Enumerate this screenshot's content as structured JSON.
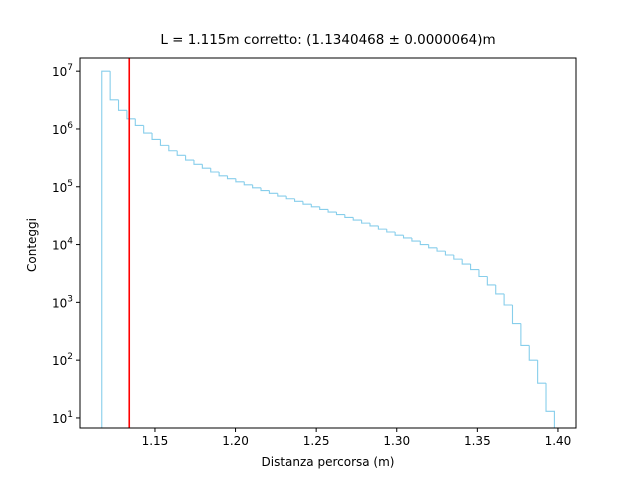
{
  "chart_data": {
    "type": "histogram",
    "title": "L = 1.115m corretto: (1.1340468 ± 0.0000064)m",
    "x_label": "Distanza percorsa (m)",
    "y_label": "Conteggi",
    "histtype": "step",
    "color": "#87ceeb",
    "y_scale": "log",
    "bins": [
      1.117,
      1.1222,
      1.1274,
      1.1326,
      1.1378,
      1.143,
      1.1482,
      1.1534,
      1.1586,
      1.1638,
      1.169,
      1.1742,
      1.1794,
      1.1846,
      1.1898,
      1.195,
      1.2002,
      1.2054,
      1.2106,
      1.2158,
      1.221,
      1.2262,
      1.2314,
      1.2366,
      1.2418,
      1.247,
      1.2522,
      1.2574,
      1.2626,
      1.2678,
      1.273,
      1.2782,
      1.2834,
      1.2886,
      1.2938,
      1.299,
      1.3042,
      1.3094,
      1.3146,
      1.3198,
      1.325,
      1.3302,
      1.3354,
      1.3406,
      1.3458,
      1.351,
      1.3562,
      1.3614,
      1.3666,
      1.3718,
      1.377,
      1.3822,
      1.3874,
      1.3926,
      1.3978
    ],
    "values": [
      10000000,
      3200000,
      2100000,
      1500000,
      1150000,
      850000,
      660000,
      520000,
      420000,
      350000,
      290000,
      245000,
      210000,
      180000,
      155000,
      138000,
      122000,
      108000,
      96000,
      86000,
      77000,
      69000,
      62000,
      56000,
      50000,
      45000,
      40500,
      36500,
      33000,
      29500,
      26500,
      23500,
      21000,
      18500,
      16500,
      14500,
      13000,
      11500,
      10000,
      8800,
      7700,
      6600,
      5600,
      4600,
      3700,
      2800,
      2000,
      1400,
      900,
      430,
      180,
      100,
      40,
      13
    ],
    "vline": {
      "x": 1.1340468,
      "color": "#ff0000"
    },
    "xlim": [
      1.1035,
      1.4112
    ],
    "ylim": [
      6.7,
      16900000
    ],
    "xticks": [
      1.15,
      {
        "value": 1.2,
        "label": "1.20"
      },
      1.25,
      {
        "value": 1.3,
        "label": "1.30"
      },
      1.35,
      {
        "value": 1.4,
        "label": "1.40"
      }
    ],
    "yticks": [
      {
        "value": 10,
        "label": "10",
        "exp": "1"
      },
      {
        "value": 100,
        "label": "10",
        "exp": "2"
      },
      {
        "value": 1000,
        "label": "10",
        "exp": "3"
      },
      {
        "value": 10000,
        "label": "10",
        "exp": "4"
      },
      {
        "value": 100000,
        "label": "10",
        "exp": "5"
      },
      {
        "value": 1000000,
        "label": "10",
        "exp": "6"
      },
      {
        "value": 10000000,
        "label": "10",
        "exp": "7"
      }
    ]
  }
}
